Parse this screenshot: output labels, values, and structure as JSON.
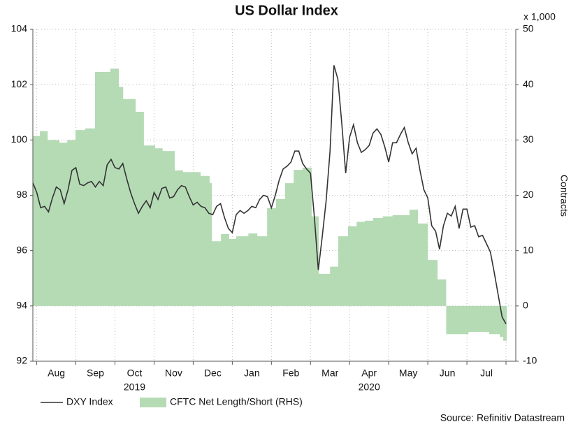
{
  "chart_data": {
    "type": "line",
    "title": "US Dollar Index",
    "y2_unit_label": "x 1,000",
    "y2_label": "Contracts",
    "source": "Source: Refinitiv Datastream",
    "categories": [
      "Aug",
      "Sep",
      "Oct",
      "Nov",
      "Dec",
      "Jan",
      "Feb",
      "Mar",
      "Apr",
      "May",
      "Jun",
      "Jul"
    ],
    "x_group_labels": [
      {
        "label": "2019",
        "position": 2.5
      },
      {
        "label": "2020",
        "position": 8.5
      }
    ],
    "xlim": [
      -0.1,
      12.25
    ],
    "xticks": [
      0,
      1,
      2,
      3,
      4,
      5,
      6,
      7,
      8,
      9,
      10,
      11,
      12
    ],
    "ylim": [
      92,
      104
    ],
    "yticks": [
      92,
      94,
      96,
      98,
      100,
      102,
      104
    ],
    "y2lim": [
      -10,
      50
    ],
    "y2ticks": [
      -10,
      0,
      10,
      20,
      30,
      40,
      50
    ],
    "grid": true,
    "series": [
      {
        "name": "CFTC Net Length/Short (RHS)",
        "kind": "step-area",
        "axis": "y2",
        "color": "#b5dbb5",
        "x": [
          -0.1,
          0.08,
          0.28,
          0.58,
          0.78,
          0.99,
          1.24,
          1.49,
          1.88,
          2.1,
          2.21,
          2.53,
          2.74,
          3.03,
          3.22,
          3.53,
          3.74,
          4.19,
          4.42,
          4.48,
          4.71,
          4.92,
          5.1,
          5.41,
          5.64,
          5.89,
          6.12,
          6.35,
          6.57,
          6.8,
          7.03,
          7.21,
          7.5,
          7.71,
          7.96,
          8.18,
          8.39,
          8.6,
          8.85,
          9.1,
          9.53,
          9.75,
          10.0,
          10.25,
          10.47,
          11.04,
          11.57,
          11.84,
          11.93
        ],
        "values": [
          30.7,
          31.6,
          30.0,
          29.5,
          30.0,
          31.8,
          32.1,
          42.3,
          42.9,
          39.6,
          37.4,
          35.1,
          29.0,
          28.5,
          28.0,
          24.5,
          24.2,
          23.5,
          22.2,
          11.7,
          13.0,
          12.1,
          12.6,
          13.1,
          12.6,
          17.7,
          19.3,
          22.2,
          24.6,
          25.0,
          16.2,
          5.8,
          7.1,
          12.6,
          14.4,
          15.2,
          15.4,
          15.9,
          16.2,
          16.4,
          17.4,
          14.9,
          8.3,
          4.8,
          -5.1,
          -4.7,
          -5.1,
          -5.6,
          -6.3
        ]
      },
      {
        "name": "DXY Index",
        "kind": "line",
        "axis": "y",
        "color": "#333333",
        "x": [
          -0.1,
          0,
          0.1,
          0.2,
          0.3,
          0.4,
          0.5,
          0.6,
          0.7,
          0.8,
          0.9,
          1,
          1.1,
          1.2,
          1.3,
          1.4,
          1.5,
          1.6,
          1.7,
          1.8,
          1.9,
          2,
          2.1,
          2.2,
          2.3,
          2.4,
          2.5,
          2.6,
          2.7,
          2.8,
          2.9,
          3,
          3.1,
          3.2,
          3.3,
          3.4,
          3.5,
          3.6,
          3.7,
          3.8,
          3.9,
          4,
          4.1,
          4.2,
          4.3,
          4.4,
          4.5,
          4.6,
          4.7,
          4.8,
          4.9,
          5,
          5.1,
          5.2,
          5.3,
          5.4,
          5.5,
          5.6,
          5.7,
          5.8,
          5.9,
          6,
          6.1,
          6.2,
          6.3,
          6.4,
          6.5,
          6.6,
          6.7,
          6.8,
          6.9,
          7,
          7.1,
          7.2,
          7.3,
          7.4,
          7.5,
          7.6,
          7.7,
          7.8,
          7.9,
          8,
          8.1,
          8.2,
          8.3,
          8.4,
          8.5,
          8.6,
          8.7,
          8.8,
          8.9,
          9,
          9.1,
          9.2,
          9.3,
          9.4,
          9.5,
          9.6,
          9.7,
          9.8,
          9.9,
          10,
          10.1,
          10.2,
          10.3,
          10.4,
          10.5,
          10.6,
          10.7,
          10.8,
          10.9,
          11,
          11.1,
          11.2,
          11.3,
          11.4,
          11.5,
          11.6,
          11.7,
          11.8,
          11.9,
          12
        ],
        "values": [
          98.45,
          98.1,
          97.55,
          97.6,
          97.4,
          97.9,
          98.3,
          98.2,
          97.7,
          98.2,
          98.9,
          99.0,
          98.4,
          98.35,
          98.45,
          98.5,
          98.3,
          98.5,
          98.35,
          99.1,
          99.3,
          99.0,
          98.95,
          99.15,
          98.6,
          98.1,
          97.7,
          97.35,
          97.6,
          97.8,
          97.55,
          98.1,
          97.85,
          98.25,
          98.3,
          97.9,
          97.95,
          98.2,
          98.35,
          98.3,
          97.95,
          97.65,
          97.75,
          97.6,
          97.55,
          97.35,
          97.3,
          97.6,
          97.7,
          97.2,
          96.8,
          96.65,
          97.3,
          97.45,
          97.35,
          97.45,
          97.6,
          97.55,
          97.85,
          98.0,
          97.95,
          97.55,
          98.0,
          98.55,
          98.95,
          99.05,
          99.2,
          99.6,
          99.6,
          99.15,
          98.95,
          98.8,
          97.2,
          95.3,
          96.5,
          97.8,
          99.6,
          102.7,
          102.2,
          100.6,
          98.8,
          100.1,
          100.55,
          99.9,
          99.55,
          99.65,
          99.8,
          100.25,
          100.4,
          100.2,
          99.75,
          99.2,
          99.9,
          99.9,
          100.2,
          100.45,
          99.9,
          99.5,
          99.7,
          98.9,
          98.2,
          97.9,
          96.9,
          96.7,
          96.05,
          96.9,
          97.35,
          97.25,
          97.6,
          96.8,
          97.5,
          97.5,
          96.85,
          96.9,
          96.5,
          96.55,
          96.25,
          95.95,
          95.2,
          94.4,
          93.6,
          93.35
        ]
      }
    ]
  }
}
